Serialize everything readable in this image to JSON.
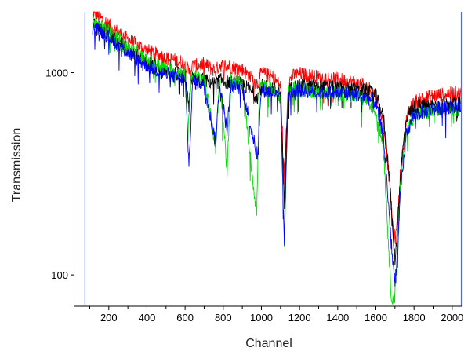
{
  "chart_data": {
    "type": "line",
    "title": "",
    "xlabel": "Channel",
    "ylabel": "Transmission",
    "x_scale": "linear",
    "y_scale": "log",
    "xlim": [
      20,
      2050
    ],
    "ylim": [
      70,
      2000
    ],
    "x_ticks": [
      200,
      400,
      600,
      800,
      1000,
      1200,
      1400,
      1600,
      1800,
      2000
    ],
    "y_ticks": [
      100,
      1000
    ],
    "grid": false,
    "legend": "none",
    "vertical_markers": [
      {
        "x": 75,
        "color": "#5a6bbf"
      },
      {
        "x": 2048,
        "color": "#5a6bbf"
      }
    ],
    "series": [
      {
        "color": "#ff0000",
        "points": [
          [
            115,
            2000
          ],
          [
            200,
            1720
          ],
          [
            300,
            1460
          ],
          [
            400,
            1290
          ],
          [
            500,
            1180
          ],
          [
            600,
            1120
          ],
          [
            620,
            1000
          ],
          [
            640,
            1080
          ],
          [
            700,
            1100
          ],
          [
            760,
            1020
          ],
          [
            780,
            1090
          ],
          [
            820,
            1080
          ],
          [
            900,
            1040
          ],
          [
            980,
            880
          ],
          [
            1000,
            1000
          ],
          [
            1060,
            950
          ],
          [
            1100,
            860
          ],
          [
            1120,
            300
          ],
          [
            1140,
            880
          ],
          [
            1160,
            960
          ],
          [
            1200,
            990
          ],
          [
            1300,
            950
          ],
          [
            1400,
            930
          ],
          [
            1500,
            890
          ],
          [
            1560,
            850
          ],
          [
            1600,
            780
          ],
          [
            1640,
            560
          ],
          [
            1670,
            300
          ],
          [
            1690,
            170
          ],
          [
            1700,
            150
          ],
          [
            1710,
            170
          ],
          [
            1730,
            330
          ],
          [
            1760,
            590
          ],
          [
            1800,
            720
          ],
          [
            1900,
            770
          ],
          [
            2000,
            790
          ],
          [
            2048,
            790
          ]
        ]
      },
      {
        "color": "#000000",
        "points": [
          [
            115,
            1780
          ],
          [
            200,
            1540
          ],
          [
            300,
            1300
          ],
          [
            400,
            1130
          ],
          [
            500,
            1030
          ],
          [
            600,
            960
          ],
          [
            620,
            650
          ],
          [
            630,
            940
          ],
          [
            700,
            920
          ],
          [
            760,
            880
          ],
          [
            780,
            920
          ],
          [
            820,
            900
          ],
          [
            900,
            880
          ],
          [
            980,
            760
          ],
          [
            1000,
            860
          ],
          [
            1060,
            840
          ],
          [
            1100,
            770
          ],
          [
            1120,
            230
          ],
          [
            1140,
            800
          ],
          [
            1160,
            850
          ],
          [
            1200,
            860
          ],
          [
            1300,
            850
          ],
          [
            1400,
            840
          ],
          [
            1500,
            820
          ],
          [
            1560,
            810
          ],
          [
            1600,
            770
          ],
          [
            1640,
            600
          ],
          [
            1670,
            320
          ],
          [
            1690,
            150
          ],
          [
            1700,
            120
          ],
          [
            1710,
            150
          ],
          [
            1730,
            330
          ],
          [
            1760,
            600
          ],
          [
            1800,
            680
          ],
          [
            1900,
            690
          ],
          [
            2000,
            700
          ],
          [
            2048,
            700
          ]
        ]
      },
      {
        "color": "#00e000",
        "points": [
          [
            115,
            1800
          ],
          [
            200,
            1600
          ],
          [
            300,
            1330
          ],
          [
            400,
            1150
          ],
          [
            500,
            1050
          ],
          [
            600,
            980
          ],
          [
            615,
            480
          ],
          [
            630,
            960
          ],
          [
            700,
            950
          ],
          [
            760,
            420
          ],
          [
            780,
            940
          ],
          [
            820,
            330
          ],
          [
            840,
            920
          ],
          [
            900,
            880
          ],
          [
            975,
            200
          ],
          [
            990,
            860
          ],
          [
            1060,
            830
          ],
          [
            1100,
            760
          ],
          [
            1120,
            140
          ],
          [
            1140,
            790
          ],
          [
            1160,
            820
          ],
          [
            1200,
            830
          ],
          [
            1300,
            800
          ],
          [
            1400,
            790
          ],
          [
            1500,
            760
          ],
          [
            1560,
            720
          ],
          [
            1600,
            640
          ],
          [
            1640,
            430
          ],
          [
            1665,
            150
          ],
          [
            1680,
            80
          ],
          [
            1695,
            75
          ],
          [
            1710,
            100
          ],
          [
            1730,
            300
          ],
          [
            1760,
            520
          ],
          [
            1800,
            610
          ],
          [
            1900,
            640
          ],
          [
            2000,
            660
          ],
          [
            2048,
            660
          ]
        ]
      },
      {
        "color": "#0000ff",
        "points": [
          [
            115,
            1700
          ],
          [
            200,
            1500
          ],
          [
            300,
            1250
          ],
          [
            400,
            1080
          ],
          [
            500,
            980
          ],
          [
            600,
            920
          ],
          [
            620,
            350
          ],
          [
            640,
            900
          ],
          [
            700,
            880
          ],
          [
            760,
            450
          ],
          [
            780,
            870
          ],
          [
            820,
            520
          ],
          [
            840,
            860
          ],
          [
            900,
            840
          ],
          [
            980,
            380
          ],
          [
            1000,
            820
          ],
          [
            1060,
            800
          ],
          [
            1100,
            740
          ],
          [
            1120,
            150
          ],
          [
            1140,
            770
          ],
          [
            1160,
            810
          ],
          [
            1200,
            820
          ],
          [
            1300,
            800
          ],
          [
            1400,
            790
          ],
          [
            1500,
            780
          ],
          [
            1560,
            750
          ],
          [
            1600,
            700
          ],
          [
            1640,
            480
          ],
          [
            1670,
            200
          ],
          [
            1690,
            110
          ],
          [
            1700,
            95
          ],
          [
            1710,
            115
          ],
          [
            1730,
            260
          ],
          [
            1760,
            500
          ],
          [
            1800,
            620
          ],
          [
            1900,
            660
          ],
          [
            2000,
            680
          ],
          [
            2048,
            680
          ]
        ]
      }
    ]
  }
}
